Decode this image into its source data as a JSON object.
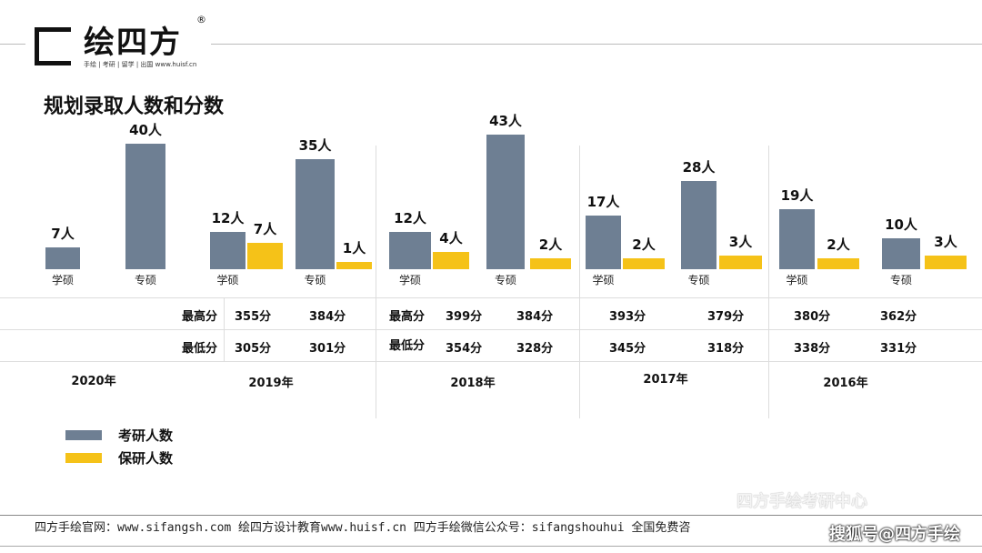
{
  "logo": {
    "text": "绘四方",
    "sub": "手绘 | 考研 | 留学 | 出国  www.huisf.cn",
    "reg": "®"
  },
  "title": "规划录取人数和分数",
  "colors": {
    "kaoyan": "#6e7f93",
    "baoyan": "#f5c218"
  },
  "chart_data": {
    "type": "bar",
    "title": "规划录取人数和分数",
    "legend": [
      {
        "name": "考研人数",
        "color": "#6e7f93"
      },
      {
        "name": "保研人数",
        "color": "#f5c218"
      }
    ],
    "legend_position": "bottom-left",
    "unit": "人",
    "years": [
      {
        "year": "2020年",
        "groups": [
          {
            "category": "学硕",
            "kaoyan": 7
          },
          {
            "category": "专硕",
            "kaoyan": 40
          }
        ]
      },
      {
        "year": "2019年",
        "groups": [
          {
            "category": "学硕",
            "kaoyan": 12,
            "baoyan": 7,
            "max": "355分",
            "min": "305分"
          },
          {
            "category": "专硕",
            "kaoyan": 35,
            "baoyan": 1,
            "max": "384分",
            "min": "301分"
          }
        ]
      },
      {
        "year": "2018年",
        "groups": [
          {
            "category": "学硕",
            "kaoyan": 12,
            "baoyan": 4,
            "max": "399分",
            "min": "354分"
          },
          {
            "category": "专硕",
            "kaoyan": 43,
            "baoyan": 2,
            "max": "384分",
            "min": "328分"
          }
        ]
      },
      {
        "year": "2017年",
        "groups": [
          {
            "category": "学硕",
            "kaoyan": 17,
            "baoyan": 2,
            "max": "393分",
            "min": "345分"
          },
          {
            "category": "专硕",
            "kaoyan": 28,
            "baoyan": 3,
            "max": "379分",
            "min": "318分"
          }
        ]
      },
      {
        "year": "2016年",
        "groups": [
          {
            "category": "学硕",
            "kaoyan": 19,
            "baoyan": 2,
            "max": "380分",
            "min": "338分"
          },
          {
            "category": "专硕",
            "kaoyan": 10,
            "baoyan": 3,
            "max": "362分",
            "min": "331分"
          }
        ]
      }
    ],
    "row_labels": {
      "max": "最高分",
      "min": "最低分"
    }
  },
  "footer": "四方手绘官网：www.sifangsh.com  绘四方设计教育www.huisf.cn   四方手绘微信公众号：sifangshouhui   全国免费咨",
  "watermarks": {
    "wechat": "四方手绘考研中心",
    "sohu": "搜狐号@四方手绘"
  }
}
